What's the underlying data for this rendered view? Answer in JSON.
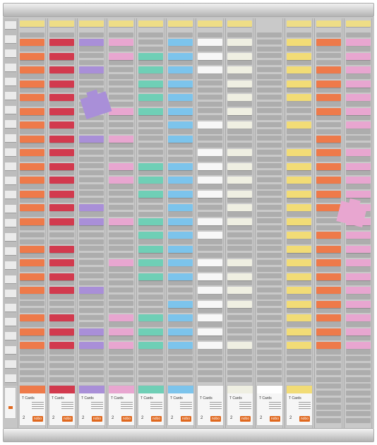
{
  "palette": {
    "orange": "#ee7a4a",
    "red": "#d23a4e",
    "violet": "#a98fd8",
    "pink": "#e8a6d0",
    "teal": "#6fcfb6",
    "blue": "#7cc4ec",
    "white": "#f7f7f7",
    "cream": "#efefe2",
    "yellow": "#f2dc76",
    "header_yellow": "#eedd86"
  },
  "columns": [
    {
      "color": "orange",
      "boxed": true,
      "rows": [
        1,
        2,
        3,
        4,
        5,
        6,
        7,
        8,
        9,
        10,
        11,
        12,
        13,
        14,
        16,
        17,
        18,
        19,
        21,
        22,
        23
      ]
    },
    {
      "color": "red",
      "boxed": true,
      "rows": [
        1,
        2,
        3,
        4,
        5,
        6,
        7,
        8,
        9,
        10,
        11,
        12,
        13,
        14,
        16,
        17,
        18,
        19,
        21,
        22,
        23
      ]
    },
    {
      "color": "violet",
      "boxed": true,
      "rows": [
        1,
        3,
        8,
        13,
        14,
        19,
        22,
        23
      ]
    },
    {
      "color": "pink",
      "boxed": true,
      "rows": [
        1,
        2,
        6,
        8,
        10,
        11,
        14,
        17,
        21,
        22,
        23
      ]
    },
    {
      "color": "teal",
      "boxed": true,
      "rows": [
        2,
        3,
        4,
        5,
        6,
        10,
        11,
        12,
        14,
        15,
        16,
        17,
        18,
        21,
        22,
        23
      ]
    },
    {
      "color": "blue",
      "boxed": true,
      "rows": [
        1,
        2,
        3,
        4,
        5,
        6,
        7,
        8,
        10,
        11,
        12,
        13,
        14,
        15,
        16,
        17,
        18,
        20,
        21,
        22,
        23
      ]
    },
    {
      "color": "white",
      "boxed": true,
      "rows": [
        1,
        2,
        3,
        7,
        9,
        10,
        11,
        12,
        14,
        15,
        17,
        18,
        19,
        20,
        21,
        22,
        23
      ]
    },
    {
      "color": "cream",
      "boxed": true,
      "rows": [
        1,
        2,
        3,
        4,
        5,
        6,
        7,
        9,
        10,
        11,
        12,
        13,
        14,
        17,
        18,
        19,
        20,
        23
      ]
    },
    {
      "color": "none",
      "boxed": true,
      "rows": []
    },
    {
      "color": "yellow",
      "boxed": true,
      "rows": [
        1,
        2,
        3,
        4,
        5,
        7,
        9,
        10,
        11,
        12,
        13,
        14,
        15,
        16,
        17,
        18,
        19,
        20,
        21,
        22,
        23
      ]
    },
    {
      "color": "orange",
      "boxed": false,
      "rows": [
        1,
        3,
        4,
        5,
        6,
        8,
        9,
        10,
        11,
        12,
        13,
        15,
        16,
        17,
        18,
        19,
        20,
        21,
        22,
        23
      ]
    },
    {
      "color": "pink",
      "boxed": false,
      "rows": [
        1,
        2,
        3,
        4,
        5,
        6,
        7,
        9,
        10,
        11,
        12,
        13,
        14,
        15,
        16,
        17,
        18,
        19,
        20,
        21,
        22,
        23
      ]
    }
  ],
  "loose_cards": [
    {
      "color": "violet"
    },
    {
      "color": "pink"
    }
  ],
  "box": {
    "title": "T Cards",
    "quantity": "2",
    "logo": "nobo"
  }
}
